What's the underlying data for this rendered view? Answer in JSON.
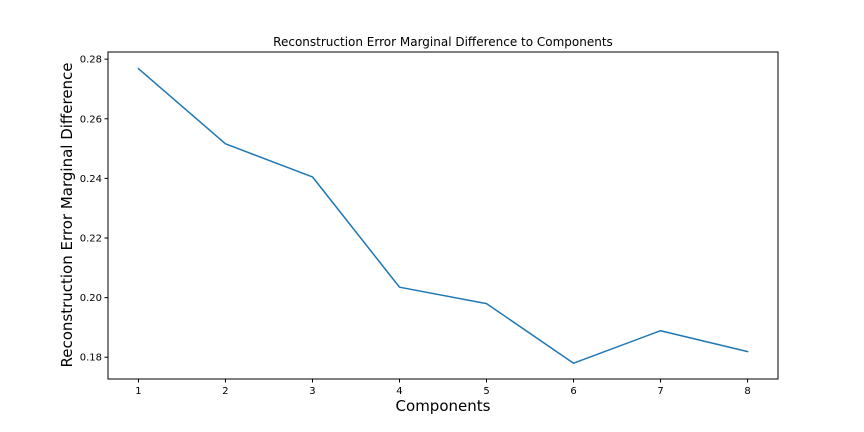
{
  "chart_data": {
    "type": "line",
    "title": "Reconstruction Error Marginal Difference to Components",
    "xlabel": "Components",
    "ylabel": "Reconstruction Error Marginal Difference",
    "x": [
      1,
      2,
      3,
      4,
      5,
      6,
      7,
      8
    ],
    "x_tick_labels": [
      "1",
      "2",
      "3",
      "4",
      "5",
      "6",
      "7",
      "8"
    ],
    "y_ticks": [
      0.18,
      0.2,
      0.22,
      0.24,
      0.26,
      0.28
    ],
    "y_tick_labels": [
      "0.18",
      "0.20",
      "0.22",
      "0.24",
      "0.26",
      "0.28"
    ],
    "series": [
      {
        "values": [
          0.2768,
          0.2516,
          0.2405,
          0.2035,
          0.198,
          0.178,
          0.1889,
          0.1819
        ],
        "color": "#1f77b4"
      }
    ],
    "xlim": [
      0.65,
      8.35
    ],
    "ylim": [
      0.1727,
      0.2824
    ],
    "grid": false,
    "legend": "none"
  }
}
